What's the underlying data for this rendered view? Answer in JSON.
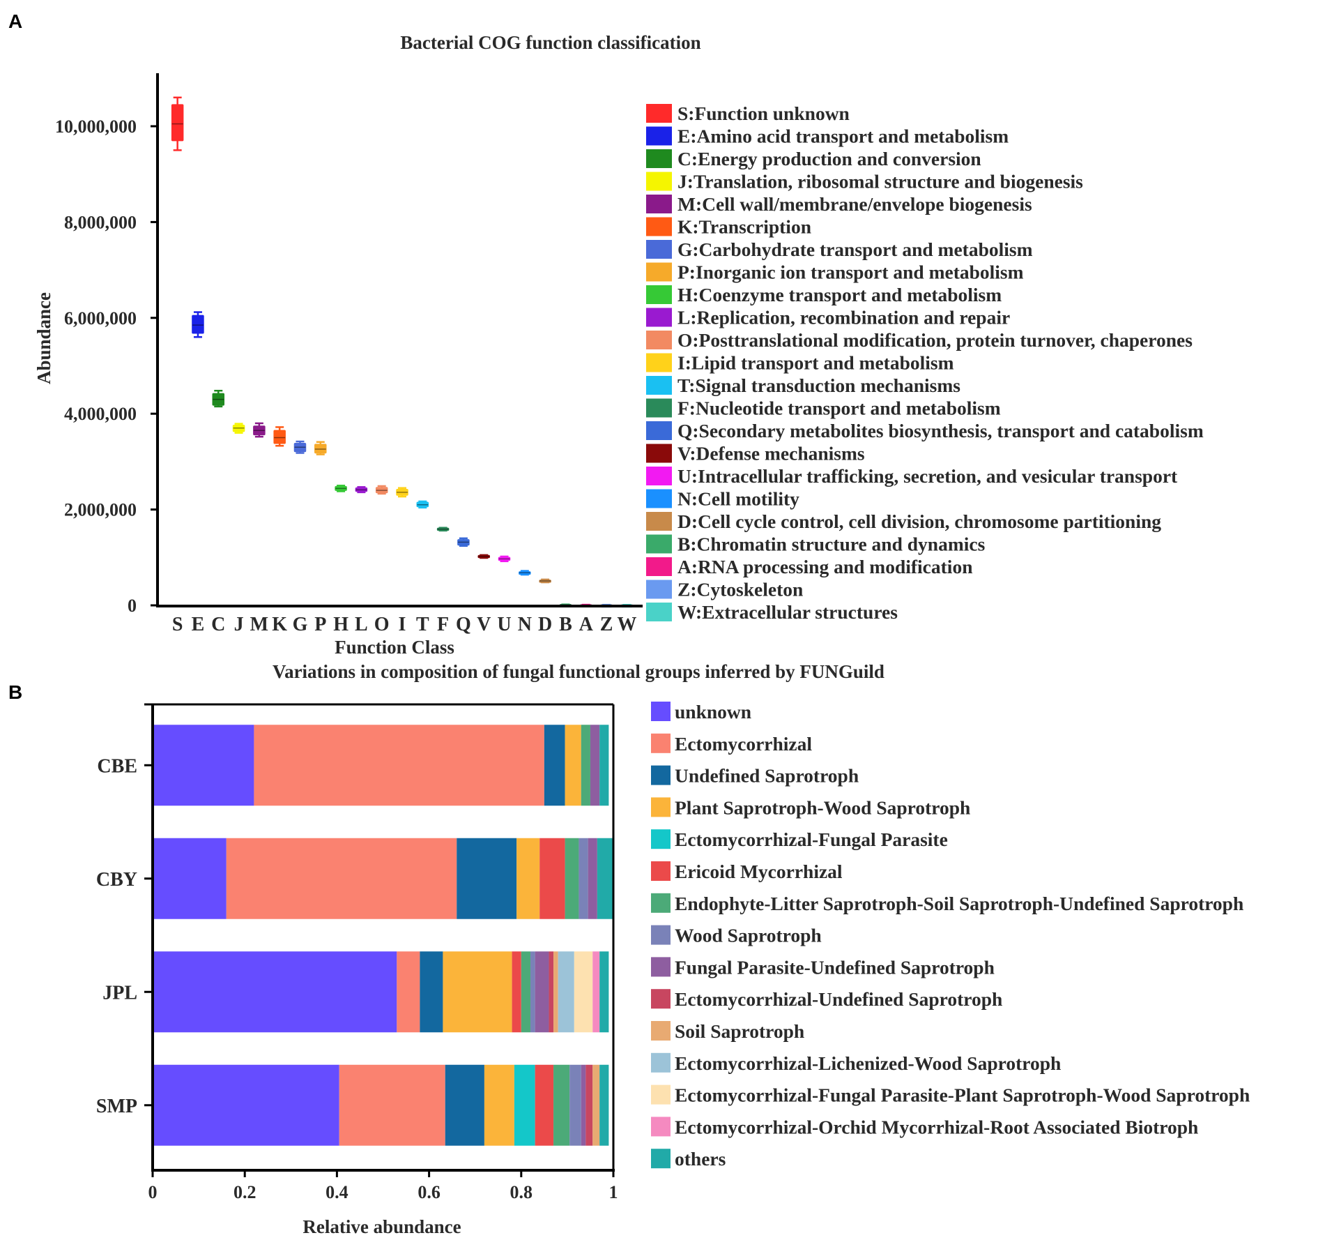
{
  "panels": {
    "a": {
      "letter": "A",
      "chart_data": {
        "type": "box",
        "title": "Bacterial COG function classification",
        "xlabel": "Function Class",
        "ylabel": "Abundance",
        "ylim": [
          0,
          11000000
        ],
        "y_ticks": [
          {
            "value": 0,
            "label": "0"
          },
          {
            "value": 2000000,
            "label": "2,000,000"
          },
          {
            "value": 4000000,
            "label": "4,000,000"
          },
          {
            "value": 6000000,
            "label": "6,000,000"
          },
          {
            "value": 8000000,
            "label": "8,000,000"
          },
          {
            "value": 10000000,
            "label": "10,000,000"
          }
        ],
        "categories": [
          {
            "code": "S",
            "label": "S:Function unknown",
            "color": "#ff2a2a",
            "min": 9500000,
            "q1": 9700000,
            "median": 10050000,
            "q3": 10450000,
            "max": 10600000
          },
          {
            "code": "E",
            "label": "E:Amino acid transport and metabolism",
            "color": "#1a22e8",
            "min": 5600000,
            "q1": 5680000,
            "median": 5850000,
            "q3": 6050000,
            "max": 6120000
          },
          {
            "code": "C",
            "label": "C:Energy production and conversion",
            "color": "#1f8a1f",
            "min": 4150000,
            "q1": 4180000,
            "median": 4300000,
            "q3": 4420000,
            "max": 4480000
          },
          {
            "code": "J",
            "label": "J:Translation, ribosomal structure and biogenesis",
            "color": "#f5f500",
            "min": 3600000,
            "q1": 3630000,
            "median": 3700000,
            "q3": 3760000,
            "max": 3790000
          },
          {
            "code": "M",
            "label": "M:Cell wall/membrane/envelope biogenesis",
            "color": "#8a1a8a",
            "min": 3520000,
            "q1": 3560000,
            "median": 3650000,
            "q3": 3740000,
            "max": 3800000
          },
          {
            "code": "K",
            "label": "K:Transcription",
            "color": "#ff5a14",
            "min": 3330000,
            "q1": 3380000,
            "median": 3500000,
            "q3": 3650000,
            "max": 3720000
          },
          {
            "code": "G",
            "label": "G:Carbohydrate transport and metabolism",
            "color": "#4a6ad8",
            "min": 3180000,
            "q1": 3210000,
            "median": 3300000,
            "q3": 3380000,
            "max": 3420000
          },
          {
            "code": "P",
            "label": "P:Inorganic ion transport and metabolism",
            "color": "#f6aa2a",
            "min": 3150000,
            "q1": 3180000,
            "median": 3260000,
            "q3": 3360000,
            "max": 3410000
          },
          {
            "code": "H",
            "label": "H:Coenzyme transport and metabolism",
            "color": "#36c936",
            "min": 2380000,
            "q1": 2400000,
            "median": 2440000,
            "q3": 2480000,
            "max": 2500000
          },
          {
            "code": "L",
            "label": "L:Replication, recombination and repair",
            "color": "#9a1ad0",
            "min": 2360000,
            "q1": 2380000,
            "median": 2410000,
            "q3": 2450000,
            "max": 2470000
          },
          {
            "code": "O",
            "label": "O:Posttranslational modification, protein turnover, chaperones",
            "color": "#f28a62",
            "min": 2330000,
            "q1": 2350000,
            "median": 2400000,
            "q3": 2460000,
            "max": 2490000
          },
          {
            "code": "I",
            "label": "I:Lipid transport and metabolism",
            "color": "#ffd21a",
            "min": 2270000,
            "q1": 2300000,
            "median": 2360000,
            "q3": 2420000,
            "max": 2450000
          },
          {
            "code": "T",
            "label": "T:Signal transduction mechanisms",
            "color": "#1ac0f2",
            "min": 2040000,
            "q1": 2060000,
            "median": 2100000,
            "q3": 2150000,
            "max": 2170000
          },
          {
            "code": "F",
            "label": "F:Nucleotide transport and metabolism",
            "color": "#2a8a5a",
            "min": 1560000,
            "q1": 1570000,
            "median": 1590000,
            "q3": 1610000,
            "max": 1620000
          },
          {
            "code": "Q",
            "label": "Q:Secondary metabolites biosynthesis, transport and catabolism",
            "color": "#3a6ad8",
            "min": 1240000,
            "q1": 1260000,
            "median": 1320000,
            "q3": 1370000,
            "max": 1400000
          },
          {
            "code": "V",
            "label": "V:Defense mechanisms",
            "color": "#8a0a0a",
            "min": 990000,
            "q1": 1000000,
            "median": 1020000,
            "q3": 1040000,
            "max": 1050000
          },
          {
            "code": "U",
            "label": "U:Intracellular trafficking, secretion, and vesicular transport",
            "color": "#f21af2",
            "min": 920000,
            "q1": 940000,
            "median": 970000,
            "q3": 1000000,
            "max": 1020000
          },
          {
            "code": "N",
            "label": "N:Cell motility",
            "color": "#1a90ff",
            "min": 640000,
            "q1": 650000,
            "median": 680000,
            "q3": 700000,
            "max": 720000
          },
          {
            "code": "D",
            "label": "D:Cell cycle control, cell division, chromosome partitioning",
            "color": "#c88a4a",
            "min": 480000,
            "q1": 490000,
            "median": 510000,
            "q3": 525000,
            "max": 540000
          },
          {
            "code": "B",
            "label": "B:Chromatin structure and dynamics",
            "color": "#3aaa6a",
            "min": 5000,
            "q1": 8000,
            "median": 12000,
            "q3": 16000,
            "max": 20000
          },
          {
            "code": "A",
            "label": "A:RNA processing and modification",
            "color": "#f21a8a",
            "min": 3000,
            "q1": 5000,
            "median": 8000,
            "q3": 11000,
            "max": 14000
          },
          {
            "code": "Z",
            "label": "Z:Cytoskeleton",
            "color": "#6a9af0",
            "min": 3000,
            "q1": 5000,
            "median": 8000,
            "q3": 10000,
            "max": 13000
          },
          {
            "code": "W",
            "label": "W:Extracellular structures",
            "color": "#4ad2c8",
            "min": 2000,
            "q1": 4000,
            "median": 6000,
            "q3": 9000,
            "max": 12000
          }
        ]
      }
    },
    "b": {
      "letter": "B",
      "chart_data": {
        "type": "stacked-bar-horizontal",
        "title": "Variations in composition of fungal functional groups inferred by FUNGuild",
        "xlabel": "Relative abundance",
        "xlim": [
          0,
          1
        ],
        "x_ticks": [
          {
            "value": 0,
            "label": "0"
          },
          {
            "value": 0.2,
            "label": "0.2"
          },
          {
            "value": 0.4,
            "label": "0.4"
          },
          {
            "value": 0.6,
            "label": "0.6"
          },
          {
            "value": 0.8,
            "label": "0.8"
          },
          {
            "value": 1,
            "label": "1"
          }
        ],
        "categories": [
          "CBE",
          "CBY",
          "JPL",
          "SMP"
        ],
        "series": [
          {
            "name": "unknown",
            "color": "#664dff",
            "values": [
              0.22,
              0.16,
              0.53,
              0.405
            ]
          },
          {
            "name": "Ectomycorrhizal",
            "color": "#fa8270",
            "values": [
              0.63,
              0.5,
              0.05,
              0.23
            ]
          },
          {
            "name": "Undefined Saprotroph",
            "color": "#13689f",
            "values": [
              0.045,
              0.13,
              0.05,
              0.085
            ]
          },
          {
            "name": "Plant Saprotroph-Wood Saprotroph",
            "color": "#fbb43a",
            "values": [
              0.035,
              0.05,
              0.15,
              0.065
            ]
          },
          {
            "name": "Ectomycorrhizal-Fungal Parasite",
            "color": "#14c7c9",
            "values": [
              0.0,
              0.0,
              0.0,
              0.045
            ]
          },
          {
            "name": "Ericoid Mycorrhizal",
            "color": "#eb4a4a",
            "values": [
              0.0,
              0.055,
              0.02,
              0.04
            ]
          },
          {
            "name": "Endophyte-Litter Saprotroph-Soil Saprotroph-Undefined Saprotroph",
            "color": "#4caa78",
            "values": [
              0.02,
              0.03,
              0.02,
              0.035
            ]
          },
          {
            "name": "Wood Saprotroph",
            "color": "#7a82b8",
            "values": [
              0.0,
              0.02,
              0.01,
              0.025
            ]
          },
          {
            "name": "Fungal Parasite-Undefined Saprotroph",
            "color": "#8e5ea0",
            "values": [
              0.02,
              0.02,
              0.03,
              0.01
            ]
          },
          {
            "name": "Ectomycorrhizal-Undefined Saprotroph",
            "color": "#c84660",
            "values": [
              0.0,
              0.0,
              0.01,
              0.015
            ]
          },
          {
            "name": "Soil Saprotroph",
            "color": "#e8aa72",
            "values": [
              0.0,
              0.0,
              0.01,
              0.015
            ]
          },
          {
            "name": "Ectomycorrhizal-Lichenized-Wood Saprotroph",
            "color": "#9cc3d8",
            "values": [
              0.0,
              0.0,
              0.035,
              0.0
            ]
          },
          {
            "name": "Ectomycorrhizal-Fungal Parasite-Plant Saprotroph-Wood Saprotroph",
            "color": "#fde1b0",
            "values": [
              0.0,
              0.0,
              0.04,
              0.0
            ]
          },
          {
            "name": "Ectomycorrhizal-Orchid Mycorrhizal-Root Associated Biotroph",
            "color": "#f58ac0",
            "values": [
              0.0,
              0.0,
              0.015,
              0.0
            ]
          },
          {
            "name": "others",
            "color": "#21aaa8",
            "values": [
              0.02,
              0.035,
              0.02,
              0.02
            ]
          }
        ]
      }
    }
  }
}
